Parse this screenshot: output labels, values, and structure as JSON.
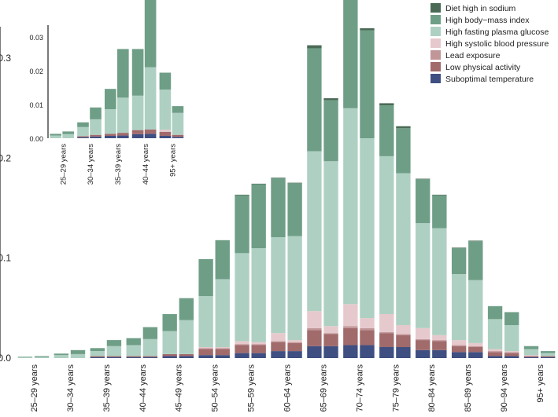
{
  "chart_data": {
    "type": "bar",
    "stacked": true,
    "grid": false,
    "legend": {
      "placement": "top-right"
    },
    "main": {
      "ylim": [
        0,
        0.33
      ],
      "yticks": [
        0.0,
        0.1,
        0.2,
        0.3
      ],
      "ytick_labels": [
        "0.0",
        "0.1",
        "0.2",
        "0.3"
      ],
      "groups": [
        "25–29 years",
        "30–34 years",
        "35–39 years",
        "40–44 years",
        "45–49 years",
        "50–54 years",
        "55–59 years",
        "60–64 years",
        "65–69 years",
        "70–74 years",
        "75–79 years",
        "80–84 years",
        "85–89 years",
        "90–94 years",
        "95+ years"
      ],
      "bars_per_group": 2,
      "series": [
        {
          "name": "Suboptimal temperature",
          "color": "#3f4f82",
          "values": [
            0,
            0,
            0,
            0,
            0.001,
            0.001,
            0.001,
            0.001,
            0.002,
            0.002,
            0.003,
            0.003,
            0.005,
            0.005,
            0.007,
            0.007,
            0.012,
            0.012,
            0.013,
            0.013,
            0.011,
            0.011,
            0.008,
            0.008,
            0.006,
            0.006,
            0.002,
            0.002,
            0.001,
            0.001
          ]
        },
        {
          "name": "Low physical activity",
          "color": "#a16a6b",
          "values": [
            0,
            0,
            0,
            0,
            0.001,
            0.001,
            0.001,
            0.001,
            0.002,
            0.002,
            0.006,
            0.006,
            0.008,
            0.008,
            0.009,
            0.008,
            0.016,
            0.012,
            0.017,
            0.015,
            0.014,
            0.012,
            0.01,
            0.009,
            0.006,
            0.005,
            0.004,
            0.003,
            0.001,
            0.001
          ]
        },
        {
          "name": "Lead exposure",
          "color": "#c19698",
          "values": [
            0,
            0,
            0,
            0,
            0,
            0,
            0,
            0,
            0,
            0,
            0.001,
            0.001,
            0.001,
            0.001,
            0.001,
            0.001,
            0.002,
            0.001,
            0.002,
            0.002,
            0.001,
            0.001,
            0.001,
            0.001,
            0.001,
            0.001,
            0.001,
            0.001,
            0,
            0
          ]
        },
        {
          "name": "High systolic blood pressure",
          "color": "#e6c9cd",
          "values": [
            0,
            0,
            0,
            0,
            0,
            0,
            0,
            0,
            0,
            0,
            0.001,
            0.001,
            0.003,
            0.002,
            0.008,
            0.002,
            0.017,
            0.007,
            0.022,
            0.01,
            0.018,
            0.009,
            0.011,
            0.005,
            0.005,
            0.003,
            0.002,
            0.001,
            0.001,
            0
          ]
        },
        {
          "name": "High fasting plasma glucose",
          "color": "#aed0c3",
          "values": [
            0.001,
            0.001,
            0.003,
            0.004,
            0.005,
            0.01,
            0.011,
            0.017,
            0.023,
            0.034,
            0.051,
            0.068,
            0.088,
            0.094,
            0.096,
            0.104,
            0.16,
            0.165,
            0.196,
            0.18,
            0.158,
            0.152,
            0.105,
            0.107,
            0.066,
            0.063,
            0.03,
            0.026,
            0.006,
            0.003
          ]
        },
        {
          "name": "High body−mass index",
          "color": "#6f9e87",
          "values": [
            0.0005,
            0.001,
            0.0015,
            0.004,
            0.003,
            0.006,
            0.007,
            0.012,
            0.017,
            0.022,
            0.037,
            0.039,
            0.058,
            0.064,
            0.059,
            0.053,
            0.103,
            0.061,
            0.123,
            0.108,
            0.051,
            0.045,
            0.044,
            0.033,
            0.026,
            0.039,
            0.013,
            0.013,
            0.003,
            0.002
          ]
        },
        {
          "name": "Diet high in sodium",
          "color": "#4a6a55",
          "values": [
            0,
            0,
            0,
            0,
            0,
            0,
            0,
            0,
            0,
            0,
            0,
            0,
            0.0005,
            0.0005,
            0.0005,
            0.0005,
            0.003,
            0.002,
            0.004,
            0.002,
            0.002,
            0.002,
            0.0005,
            0.0005,
            0.0005,
            0.0005,
            0,
            0,
            0,
            0
          ]
        }
      ]
    },
    "inset": {
      "ylim": [
        0,
        0.033
      ],
      "yticks": [
        0.0,
        0.01,
        0.02,
        0.03
      ],
      "ytick_labels": [
        "0.00",
        "0.01",
        "0.02",
        "0.03"
      ],
      "groups": [
        "25–29 years",
        "30–34 years",
        "35–39 years",
        "40–44 years",
        "95+ years"
      ],
      "bars_per_group": 2,
      "series": [
        {
          "name": "Suboptimal temperature",
          "color": "#3f4f82",
          "values": [
            0,
            0,
            0.0003,
            0.0005,
            0.0007,
            0.0008,
            0.0012,
            0.0013,
            0.0007,
            0.0004
          ]
        },
        {
          "name": "Low physical activity",
          "color": "#a16a6b",
          "values": [
            0,
            0,
            0.0003,
            0.0005,
            0.0006,
            0.0008,
            0.0012,
            0.0013,
            0.0012,
            0.0006
          ]
        },
        {
          "name": "Lead exposure",
          "color": "#c19698",
          "values": [
            0,
            0,
            0,
            0,
            0,
            0,
            0,
            0,
            0,
            0
          ]
        },
        {
          "name": "High systolic blood pressure",
          "color": "#e6c9cd",
          "values": [
            0,
            0,
            0,
            0,
            0,
            0,
            0,
            0,
            0.0006,
            0
          ]
        },
        {
          "name": "High fasting plasma glucose",
          "color": "#aed0c3",
          "values": [
            0.0008,
            0.0012,
            0.0027,
            0.0046,
            0.0073,
            0.0104,
            0.0102,
            0.0184,
            0.0119,
            0.0065
          ]
        },
        {
          "name": "High body−mass index",
          "color": "#6f9e87",
          "values": [
            0.0005,
            0.0008,
            0.0014,
            0.0035,
            0.006,
            0.0144,
            0.0138,
            0.0265,
            0.005,
            0.002
          ]
        },
        {
          "name": "Diet high in sodium",
          "color": "#4a6a55",
          "values": [
            0,
            0,
            0,
            0,
            0,
            0,
            0,
            0,
            0,
            0
          ]
        }
      ]
    },
    "legend_order": [
      "Diet high in sodium",
      "High body−mass index",
      "High fasting plasma glucose",
      "High systolic blood pressure",
      "Lead exposure",
      "Low physical activity",
      "Suboptimal temperature"
    ],
    "legend_colors": [
      "#4a6a55",
      "#6f9e87",
      "#aed0c3",
      "#e6c9cd",
      "#c19698",
      "#a16a6b",
      "#3f4f82"
    ]
  }
}
